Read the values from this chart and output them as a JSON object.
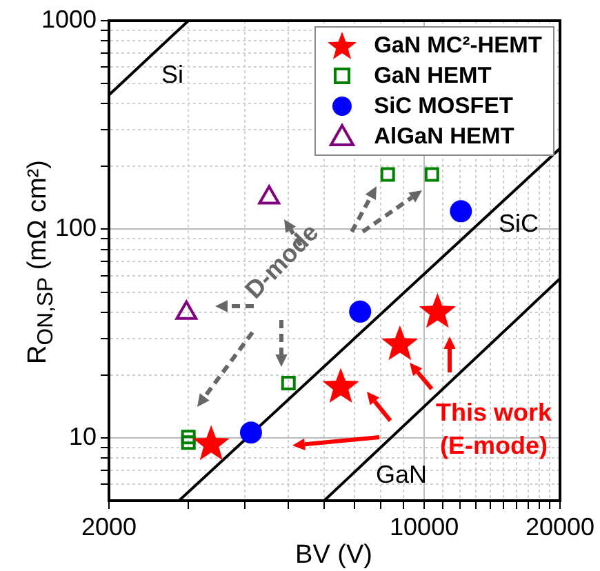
{
  "chart_data": {
    "type": "scatter",
    "xlabel": "BV (V)",
    "ylabel": "R$_{ON,SP}$ (mΩ cm²)",
    "log": "xy",
    "grid": true,
    "legend": "top right",
    "xlim": [
      2000,
      20000
    ],
    "xticks": [
      2000,
      {
        "value": 3000,
        "label": null
      },
      {
        "value": 4000,
        "label": null
      },
      {
        "value": 5000,
        "label": null
      },
      {
        "value": 6000,
        "label": null
      },
      {
        "value": 7000,
        "label": null
      },
      {
        "value": 8000,
        "label": null
      },
      {
        "value": 9000,
        "label": null
      },
      10000,
      {
        "value": 11000,
        "label": null
      },
      {
        "value": 12000,
        "label": null
      },
      {
        "value": 13000,
        "label": null
      },
      {
        "value": 14000,
        "label": null
      },
      {
        "value": 15000,
        "label": null
      },
      {
        "value": 16000,
        "label": null
      },
      {
        "value": 17000,
        "label": null
      },
      {
        "value": 18000,
        "label": null
      },
      {
        "value": 19000,
        "label": null
      },
      20000
    ],
    "ylim": [
      5,
      1000
    ],
    "yticks": [
      {
        "value": 6,
        "label": null
      },
      {
        "value": 7,
        "label": null
      },
      {
        "value": 8,
        "label": null
      },
      {
        "value": 9,
        "label": null
      },
      10,
      {
        "value": 20,
        "label": null
      },
      {
        "value": 30,
        "label": null
      },
      {
        "value": 40,
        "label": null
      },
      {
        "value": 50,
        "label": null
      },
      {
        "value": 60,
        "label": null
      },
      {
        "value": 70,
        "label": null
      },
      {
        "value": 80,
        "label": null
      },
      {
        "value": 90,
        "label": null
      },
      100,
      {
        "value": 200,
        "label": null
      },
      {
        "value": 300,
        "label": null
      },
      {
        "value": 400,
        "label": null
      },
      {
        "value": 500,
        "label": null
      },
      {
        "value": 600,
        "label": null
      },
      {
        "value": 700,
        "label": null
      },
      {
        "value": 800,
        "label": null
      },
      {
        "value": 900,
        "label": null
      },
      1000
    ],
    "series": [
      {
        "name": "GaN MC²-HEMT",
        "marker": "star",
        "color": "#ff0000",
        "x": [
          3370,
          6530,
          8830,
          10700
        ],
        "values": [
          9.3,
          17.5,
          28,
          40
        ]
      },
      {
        "name": "GaN HEMT",
        "marker": "square",
        "color": "#008000",
        "x": [
          3000,
          3000,
          5000,
          8300,
          10400
        ],
        "values": [
          10.1,
          9.5,
          18.3,
          183,
          183
        ]
      },
      {
        "name": "SiC MOSFET",
        "marker": "circle",
        "color": "#0000ff",
        "x": [
          4130,
          7210,
          12060
        ],
        "values": [
          10.6,
          40.3,
          122
        ]
      },
      {
        "name": "AlGaN HEMT",
        "marker": "triangle",
        "color": "#800080",
        "x": [
          2970,
          4530
        ],
        "values": [
          39.7,
          142
        ]
      },
      {
        "name": "Si",
        "type": "line",
        "marker": "none",
        "color": "#000000",
        "x": [
          2000,
          3000
        ],
        "values": [
          440,
          1000
        ]
      },
      {
        "name": "SiC",
        "type": "line",
        "marker": "none",
        "color": "#000000",
        "x": [
          2860,
          20000
        ],
        "values": [
          5,
          244
        ]
      },
      {
        "name": "GaN",
        "type": "line",
        "marker": "none",
        "color": "#000000",
        "x": [
          6000,
          20000
        ],
        "values": [
          5,
          58
        ]
      }
    ],
    "annotations": [
      "D-mode",
      "This work",
      "(E-mode)"
    ]
  }
}
